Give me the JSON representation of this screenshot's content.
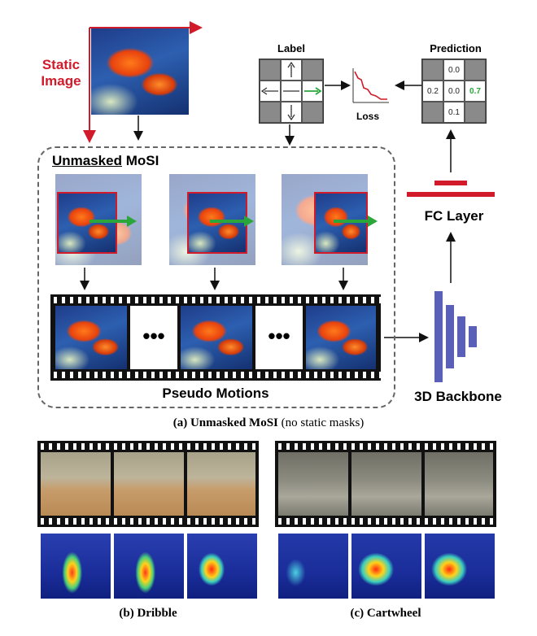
{
  "top": {
    "static_image_line1": "Static",
    "static_image_line2": "Image",
    "label_title": "Label",
    "prediction_title": "Prediction",
    "loss": "Loss",
    "prediction_values": {
      "top": "0.0",
      "left": "0.2",
      "center": "0.0",
      "right": "0.7",
      "bottom": "0.1"
    },
    "fc_layer": "FC Layer",
    "backbone": "3D Backbone"
  },
  "mosi": {
    "title_underlined": "Unmasked",
    "title_rest": " MoSI",
    "ellipsis": "•••",
    "pseudo_motions": "Pseudo Motions"
  },
  "caption_a": {
    "bold": "(a) Unmasked MoSI",
    "rest": " (no static masks)"
  },
  "caption_b": "(b) Dribble",
  "caption_c": "(c) Cartwheel",
  "colors": {
    "red": "#d11a2a",
    "green": "#2aa63a",
    "backbone": "#5a60b8"
  }
}
